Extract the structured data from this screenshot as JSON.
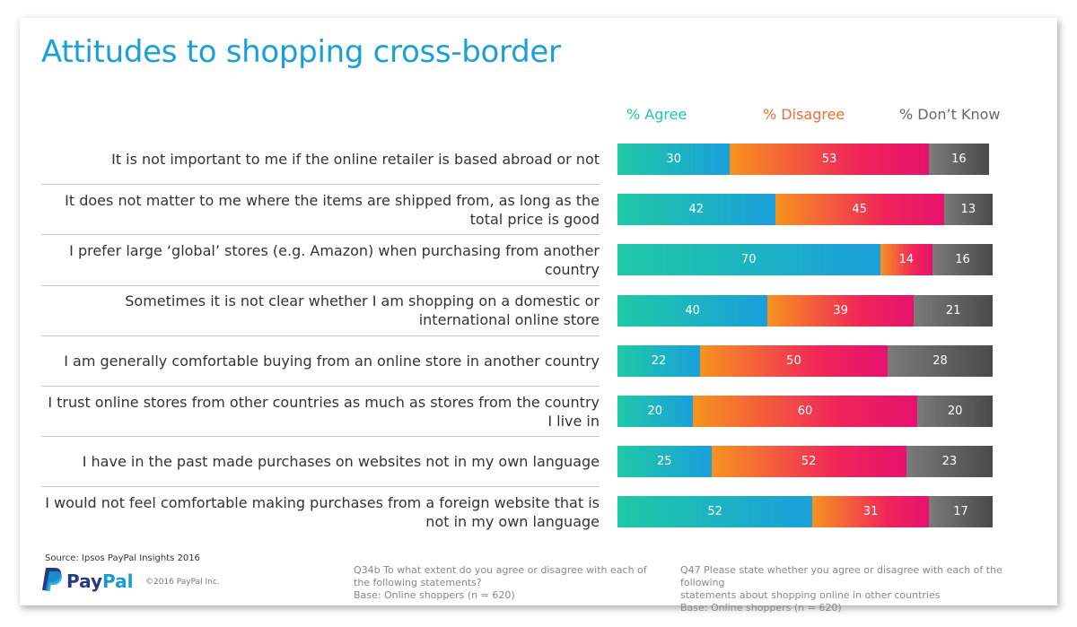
{
  "title": "Attitudes to shopping cross-border",
  "legend": [
    {
      "label": "% Agree",
      "color": "#1fc9a6"
    },
    {
      "label": "% Disagree",
      "color": "#f0245a",
      "start_color": "#f7931e"
    },
    {
      "label": "% Don’t Know",
      "color": "#666666"
    }
  ],
  "chart_data": {
    "type": "bar",
    "orientation": "horizontal",
    "stacked": true,
    "categories": [
      "It is not important to me if the online retailer is based abroad or not",
      "It does not matter to me where the items are shipped from, as long as the total price is good",
      "I prefer large ‘global’ stores (e.g. Amazon) when purchasing from another country",
      "Sometimes it is not clear whether I am shopping on a domestic or international online store",
      "I am generally comfortable buying from an online store in another country",
      "I trust online stores from other countries as much as stores from the country I live in",
      "I have in the past made purchases on websites not in my own language",
      "I would not feel comfortable making purchases from a foreign website that is not in my own language"
    ],
    "series": [
      {
        "name": "% Agree",
        "values": [
          30,
          42,
          70,
          40,
          22,
          20,
          25,
          52
        ]
      },
      {
        "name": "% Disagree",
        "values": [
          53,
          45,
          14,
          39,
          50,
          60,
          52,
          31
        ]
      },
      {
        "name": "% Don’t Know",
        "values": [
          16,
          13,
          16,
          21,
          28,
          20,
          23,
          17
        ]
      }
    ],
    "legend_position": "top"
  },
  "footer": {
    "source": "Source: Ipsos PayPal Insights 2016",
    "logo_part1": "Pay",
    "logo_part2": "Pal",
    "copyright": "©2016 PayPal Inc.",
    "note1_line1": "Q34b  To what extent do you agree or disagree with each of",
    "note1_line2": "the following statements?",
    "note1_line3": "Base: Online shoppers (n = 620)",
    "note2_line1": "Q47 Please state whether you agree or disagree with each of the following",
    "note2_line2": "statements about shopping online in other countries",
    "note2_line3": "Base: Online shoppers (n = 620)"
  }
}
